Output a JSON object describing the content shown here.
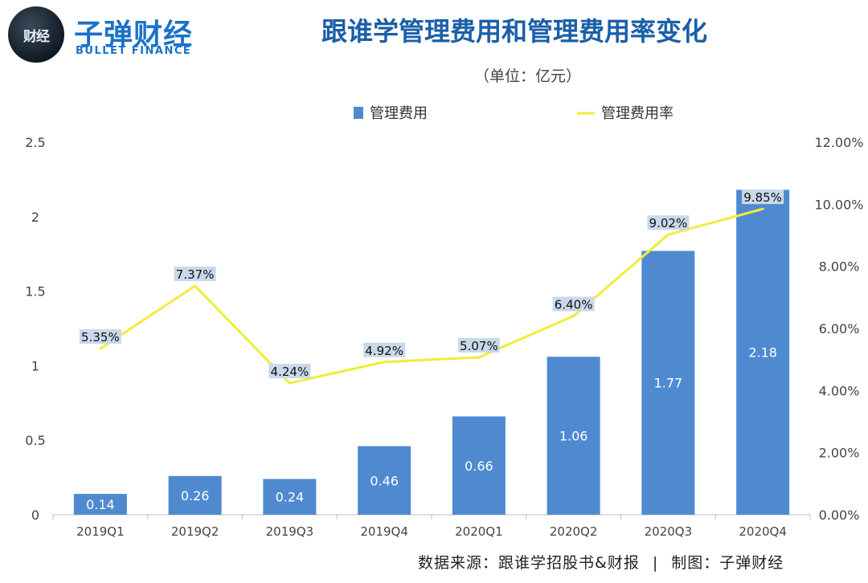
{
  "header": {
    "logo_text": "财经",
    "brand_cn": "子弹财经",
    "brand_en": "BULLET FINANCE",
    "title": "跟谁学管理费用和管理费用率变化",
    "unit": "（单位：亿元）"
  },
  "footer": {
    "source_text": "数据来源：跟谁学招股书&财报",
    "separator": "|",
    "credit_text": "制图：子弹财经"
  },
  "colors": {
    "bar": "#4f8ad0",
    "line": "#f2ec3a",
    "label_bg": "#c9d9ea",
    "axis": "#bfbfbf",
    "title": "#1a5fa8"
  },
  "chart_data": {
    "type": "bar+line",
    "categories": [
      "2019Q1",
      "2019Q2",
      "2019Q3",
      "2019Q4",
      "2020Q1",
      "2020Q2",
      "2020Q3",
      "2020Q4"
    ],
    "series": [
      {
        "name": "管理费用",
        "type": "bar",
        "axis": "left",
        "values": [
          0.14,
          0.26,
          0.24,
          0.46,
          0.66,
          1.06,
          1.77,
          2.18
        ],
        "labels": [
          "0.14",
          "0.26",
          "0.24",
          "0.46",
          "0.66",
          "1.06",
          "1.77",
          "2.18"
        ]
      },
      {
        "name": "管理费用率",
        "type": "line",
        "axis": "right",
        "values": [
          5.35,
          7.37,
          4.24,
          4.92,
          5.07,
          6.4,
          9.02,
          9.85
        ],
        "labels": [
          "5.35%",
          "7.37%",
          "4.24%",
          "4.92%",
          "5.07%",
          "6.40%",
          "9.02%",
          "9.85%"
        ]
      }
    ],
    "y_left": {
      "min": 0,
      "max": 2.5,
      "ticks": [
        "0",
        "0.5",
        "1",
        "1.5",
        "2",
        "2.5"
      ],
      "tick_values": [
        0,
        0.5,
        1,
        1.5,
        2,
        2.5
      ]
    },
    "y_right": {
      "min": 0,
      "max": 12,
      "ticks": [
        "0.00%",
        "2.00%",
        "4.00%",
        "6.00%",
        "8.00%",
        "10.00%",
        "12.00%"
      ],
      "tick_values": [
        0,
        2,
        4,
        6,
        8,
        10,
        12
      ]
    },
    "legend": [
      "管理费用",
      "管理费用率"
    ],
    "legend_position": "top",
    "grid": false
  }
}
